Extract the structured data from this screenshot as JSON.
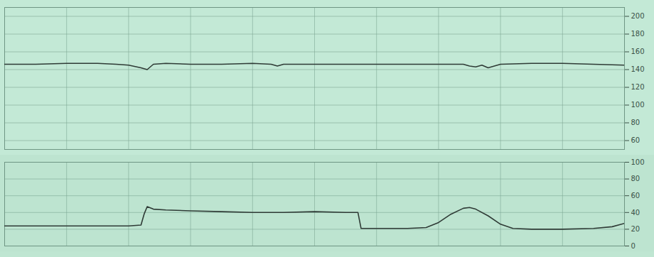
{
  "chart_data": [
    {
      "type": "line",
      "color": "#2f3b36",
      "grid": true,
      "tick_labels": "y",
      "xlim": [
        0,
        100
      ],
      "xticks": [
        0,
        10,
        20,
        30,
        40,
        50,
        60,
        70,
        80,
        90,
        100
      ],
      "ylim": [
        50,
        210
      ],
      "yticks": [
        60,
        80,
        100,
        120,
        140,
        160,
        180,
        200
      ],
      "x": [
        0,
        5,
        10,
        15,
        18,
        20,
        22,
        23,
        24,
        26,
        30,
        35,
        40,
        43,
        44,
        45,
        50,
        55,
        60,
        65,
        70,
        74,
        75,
        76,
        77,
        78,
        79,
        80,
        85,
        90,
        95,
        100
      ],
      "values": [
        146,
        146,
        147,
        147,
        146,
        145,
        142,
        140,
        146,
        147,
        146,
        146,
        147,
        146,
        144,
        146,
        146,
        146,
        146,
        146,
        146,
        146,
        144,
        143,
        145,
        142,
        144,
        146,
        147,
        147,
        146,
        145
      ]
    },
    {
      "type": "line",
      "color": "#2f3b36",
      "grid": true,
      "tick_labels": "y",
      "xlim": [
        0,
        100
      ],
      "xticks": [
        0,
        10,
        20,
        30,
        40,
        50,
        60,
        70,
        80,
        90,
        100
      ],
      "ylim": [
        0,
        100
      ],
      "yticks": [
        0,
        20,
        40,
        60,
        80,
        100
      ],
      "x": [
        0,
        5,
        10,
        15,
        20,
        22,
        22.5,
        23,
        24,
        26,
        30,
        35,
        40,
        45,
        50,
        55,
        57,
        57.5,
        60,
        65,
        68,
        70,
        72,
        74,
        75,
        76,
        78,
        80,
        82,
        85,
        90,
        95,
        98,
        100
      ],
      "values": [
        24,
        24,
        24,
        24,
        24,
        25,
        38,
        47,
        44,
        43,
        42,
        41,
        40,
        40,
        41,
        40,
        40,
        21,
        21,
        21,
        22,
        28,
        38,
        45,
        46,
        44,
        36,
        26,
        21,
        20,
        20,
        21,
        23,
        27
      ]
    }
  ]
}
